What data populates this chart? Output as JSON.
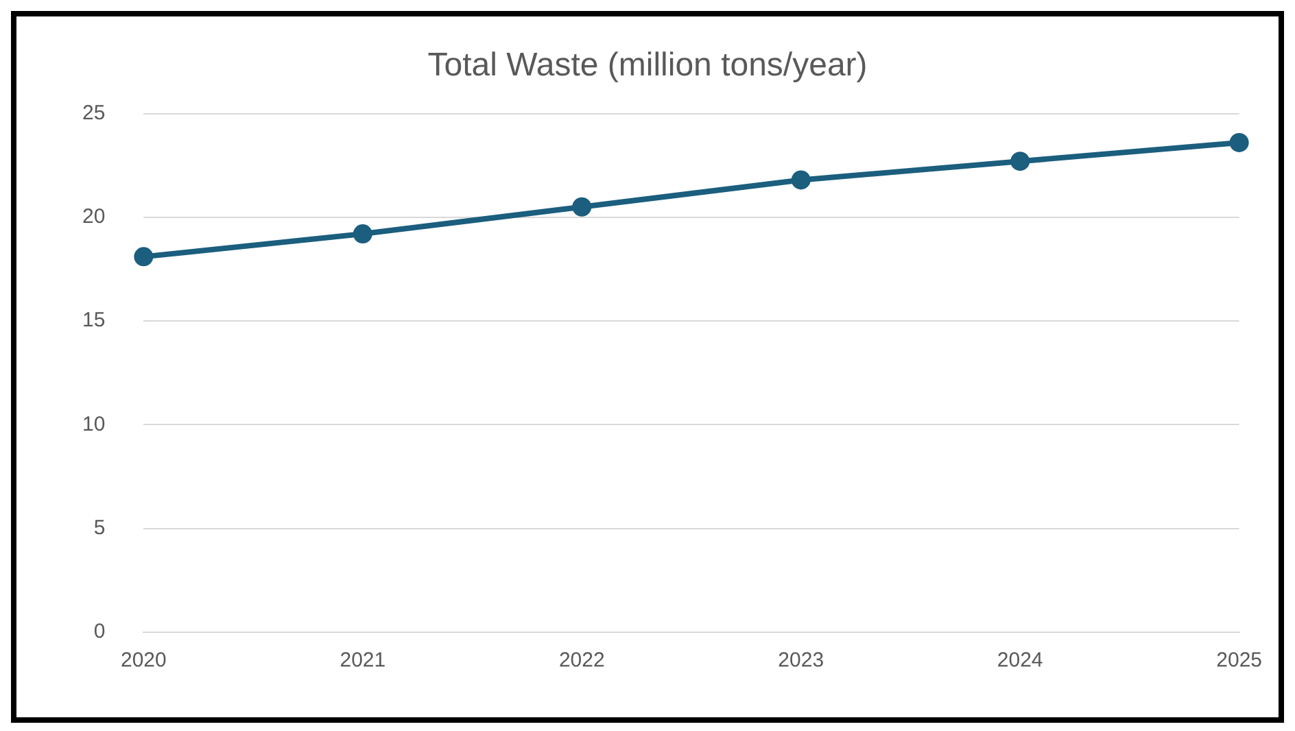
{
  "chart_data": {
    "type": "line",
    "title": "Total Waste (million tons/year)",
    "categories": [
      "2020",
      "2021",
      "2022",
      "2023",
      "2024",
      "2025"
    ],
    "series": [
      {
        "color": "#1b5e7e",
        "values": [
          18.1,
          19.2,
          20.5,
          21.8,
          22.7,
          23.6
        ]
      }
    ],
    "ylim": [
      0,
      25
    ],
    "yticks": [
      0,
      5,
      10,
      15,
      20,
      25
    ],
    "grid": "y",
    "legend": false,
    "marker": "circle",
    "line_style": "solid"
  }
}
